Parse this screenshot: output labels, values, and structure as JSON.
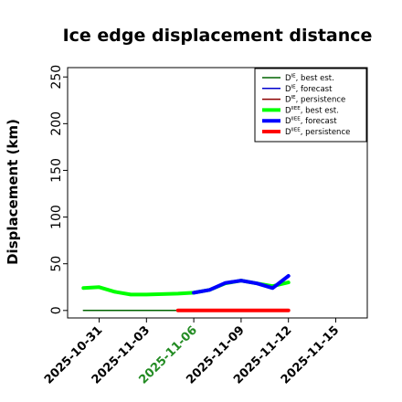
{
  "chart_data": {
    "type": "line",
    "title": "Ice edge displacement distance",
    "ylabel": "Displacement (km)",
    "xlabel": "",
    "ylim": [
      -8,
      260
    ],
    "xlim": [
      "2025-10-29",
      "2025-11-17"
    ],
    "yticks": [
      0,
      50,
      100,
      150,
      200,
      250
    ],
    "xticks": [
      {
        "label": "2025-10-31",
        "date": "2025-10-31",
        "color": "#000000"
      },
      {
        "label": "2025-11-03",
        "date": "2025-11-03",
        "color": "#000000"
      },
      {
        "label": "2025-11-06",
        "date": "2025-11-06",
        "color": "#228B22"
      },
      {
        "label": "2025-11-09",
        "date": "2025-11-09",
        "color": "#000000"
      },
      {
        "label": "2025-11-12",
        "date": "2025-11-12",
        "color": "#000000"
      },
      {
        "label": "2025-11-15",
        "date": "2025-11-15",
        "color": "#000000"
      }
    ],
    "grid": false,
    "legend_position": "top-right",
    "series": [
      {
        "name": "D^IE, best est.",
        "base": "D",
        "sup": "IE",
        "suffix": ", best est.",
        "color": "#006400",
        "width": 1.5,
        "x": [
          "2025-10-30",
          "2025-11-05"
        ],
        "y": [
          0,
          0
        ]
      },
      {
        "name": "D^IE, forecast",
        "base": "D",
        "sup": "IE",
        "suffix": ", forecast",
        "color": "#0000CD",
        "width": 1.5,
        "x": [
          "2025-11-06",
          "2025-11-12"
        ],
        "y": [
          0,
          0
        ]
      },
      {
        "name": "D^IE, persistence",
        "base": "D",
        "sup": "IE",
        "suffix": ", persistence",
        "color": "#8B0000",
        "width": 1.5,
        "x": [
          "2025-11-06",
          "2025-11-12"
        ],
        "y": [
          0,
          0
        ]
      },
      {
        "name": "D^IIEE, best est.",
        "base": "D",
        "sup": "IIEE",
        "suffix": ", best est.",
        "color": "#00FF00",
        "width": 4,
        "x": [
          "2025-10-30",
          "2025-10-31",
          "2025-11-01",
          "2025-11-02",
          "2025-11-03",
          "2025-11-04",
          "2025-11-05",
          "2025-11-06",
          "2025-11-07",
          "2025-11-08",
          "2025-11-09",
          "2025-11-10",
          "2025-11-11",
          "2025-11-12"
        ],
        "y": [
          24,
          25,
          20,
          17,
          17,
          17.5,
          18,
          19,
          22,
          29,
          32,
          29,
          26,
          30
        ]
      },
      {
        "name": "D^IIEE, forecast",
        "base": "D",
        "sup": "IIEE",
        "suffix": ", forecast",
        "color": "#0000FF",
        "width": 4,
        "x": [
          "2025-11-06",
          "2025-11-07",
          "2025-11-08",
          "2025-11-09",
          "2025-11-10",
          "2025-11-11",
          "2025-11-12"
        ],
        "y": [
          19,
          22,
          29.5,
          32,
          29,
          24,
          37
        ]
      },
      {
        "name": "D^IIEE, persistence",
        "base": "D",
        "sup": "IIEE",
        "suffix": ", persistence",
        "color": "#FF0000",
        "width": 4,
        "x": [
          "2025-11-05",
          "2025-11-06",
          "2025-11-07",
          "2025-11-08",
          "2025-11-09",
          "2025-11-10",
          "2025-11-11",
          "2025-11-12"
        ],
        "y": [
          0,
          0,
          0,
          0,
          0,
          0,
          0,
          0
        ]
      }
    ]
  }
}
